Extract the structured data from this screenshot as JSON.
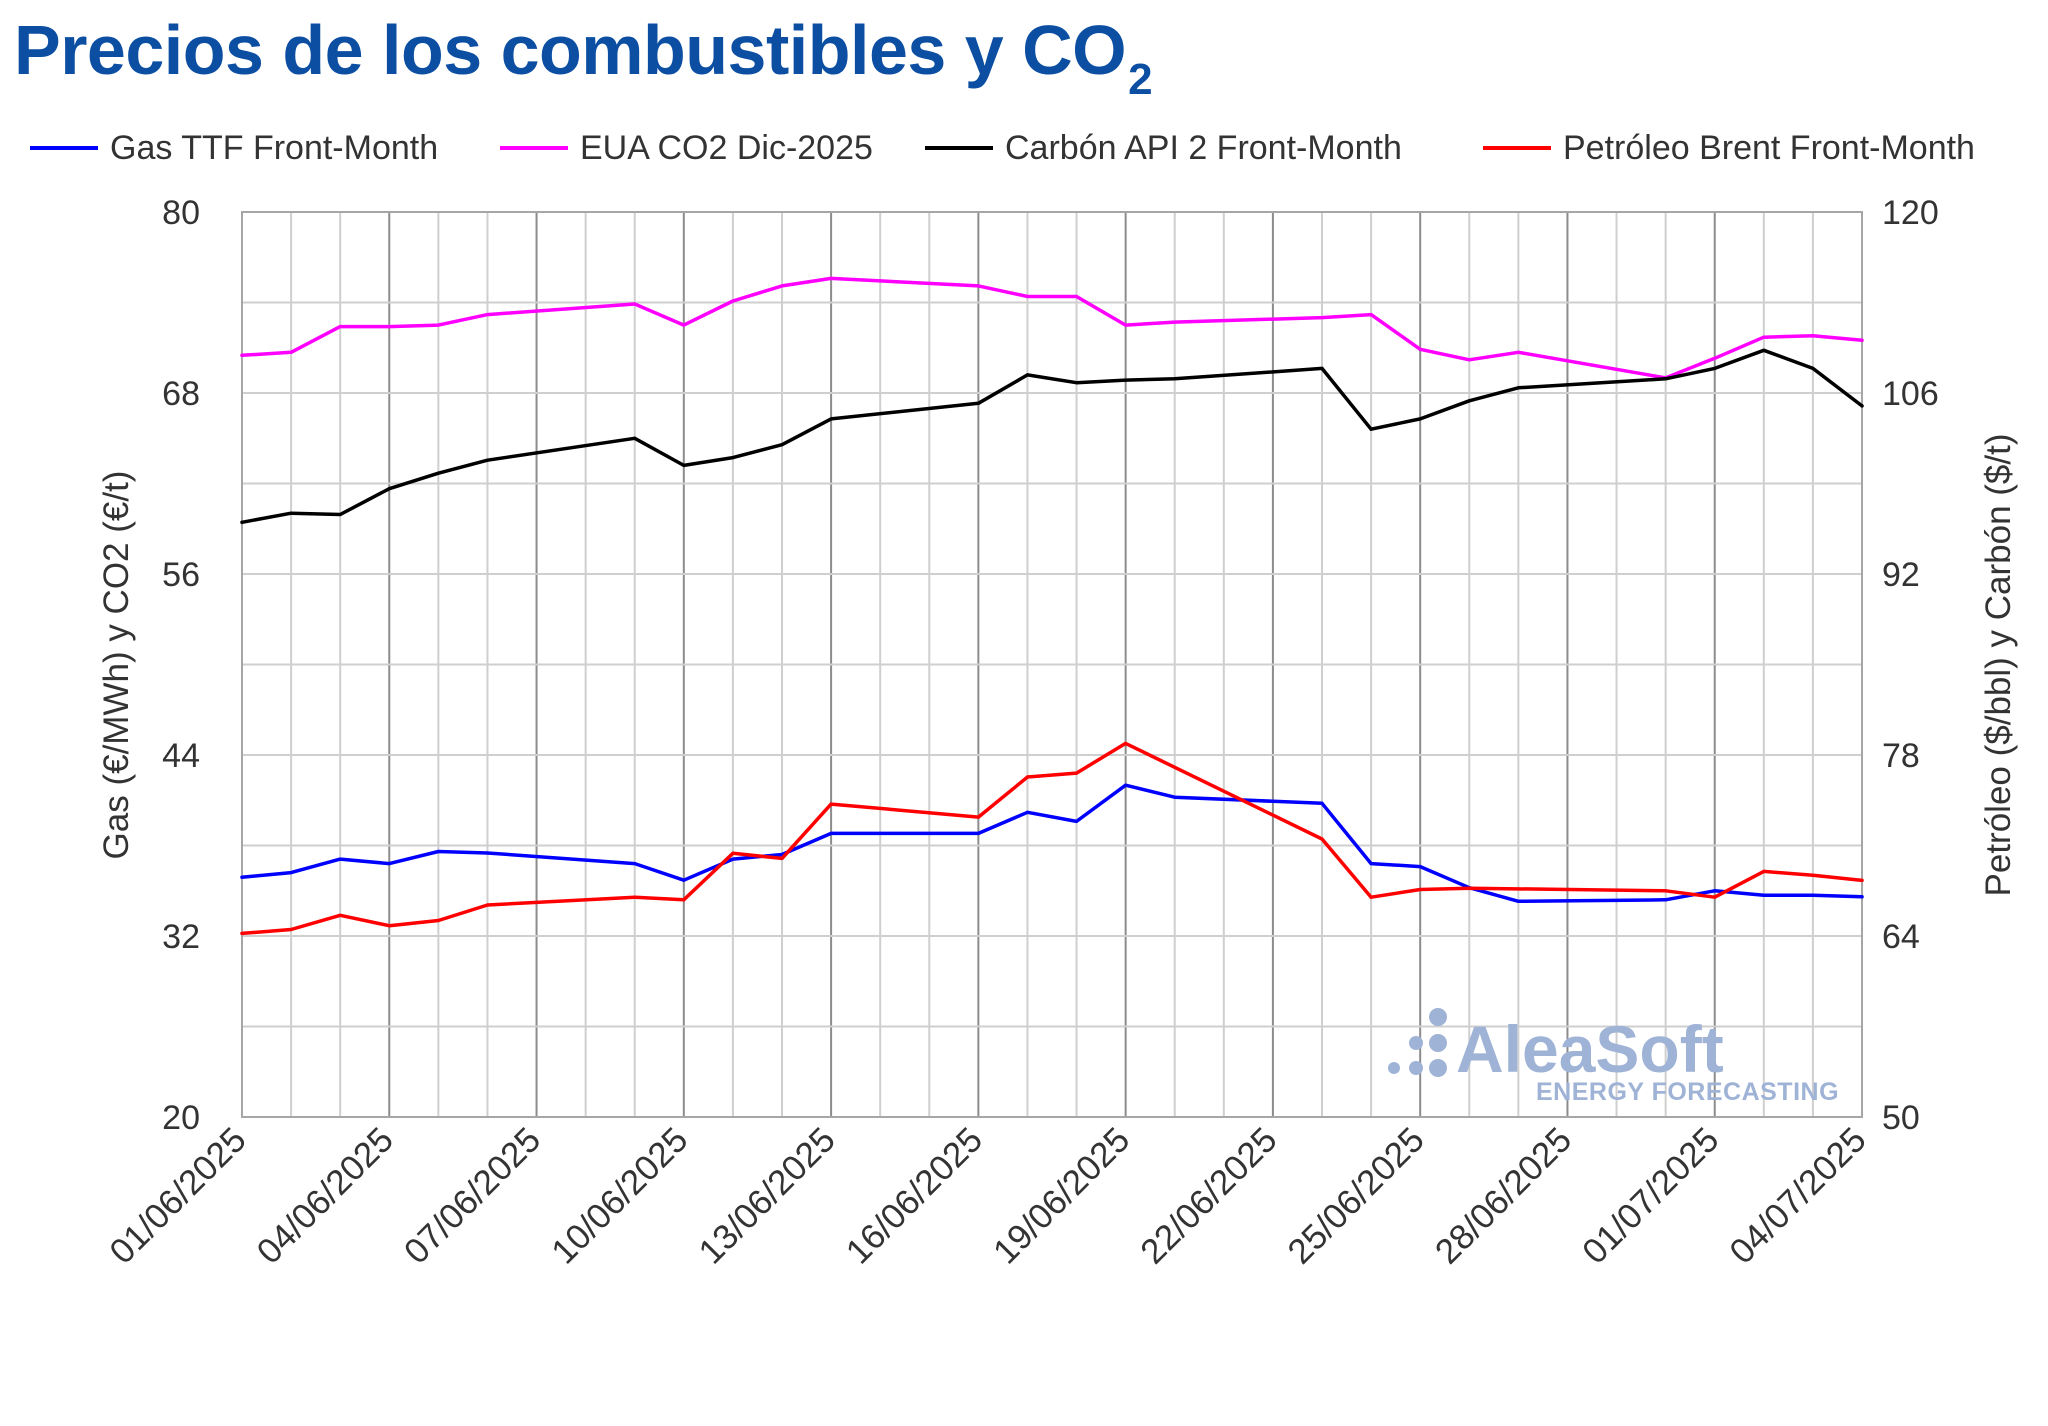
{
  "title": {
    "main": "Precios de los combustibles y CO",
    "subscript": "2"
  },
  "legend": [
    {
      "label": "Gas TTF Front-Month",
      "color": "#0000ff"
    },
    {
      "label": "EUA CO2 Dic-2025",
      "color": "#ff00ff"
    },
    {
      "label": "Carbón API 2 Front-Month",
      "color": "#000000"
    },
    {
      "label": "Petróleo Brent Front-Month",
      "color": "#ff0000"
    }
  ],
  "watermark": {
    "brand": "AleaSoft",
    "tagline": "ENERGY FORECASTING"
  },
  "chart_data": {
    "type": "line",
    "legend_position": "top",
    "grid": true,
    "ylabel_left": "Gas (€/MWh) y CO2 (€/t)",
    "ylabel_right": "Petróleo ($/bbl) y Carbón ($/t)",
    "ylim_left": [
      20,
      80
    ],
    "ylim_right": [
      50,
      120
    ],
    "yticks_left": [
      "20",
      "32",
      "44",
      "56",
      "68",
      "80"
    ],
    "yticks_right": [
      "50",
      "64",
      "78",
      "92",
      "106",
      "120"
    ],
    "x_tick_labels": [
      "01/06/2025",
      "04/06/2025",
      "07/06/2025",
      "10/06/2025",
      "13/06/2025",
      "16/06/2025",
      "19/06/2025",
      "22/06/2025",
      "25/06/2025",
      "28/06/2025",
      "01/07/2025",
      "04/07/2025"
    ],
    "series": [
      {
        "name": "Gas TTF Front-Month",
        "axis": "left",
        "color": "#0000ff",
        "points": [
          [
            "01/06/2025",
            35.9
          ],
          [
            "02/06/2025",
            36.2
          ],
          [
            "03/06/2025",
            37.1
          ],
          [
            "04/06/2025",
            36.8
          ],
          [
            "05/06/2025",
            37.6
          ],
          [
            "06/06/2025",
            37.5
          ],
          [
            "09/06/2025",
            36.8
          ],
          [
            "10/06/2025",
            35.7
          ],
          [
            "11/06/2025",
            37.1
          ],
          [
            "12/06/2025",
            37.4
          ],
          [
            "13/06/2025",
            38.8
          ],
          [
            "16/06/2025",
            38.8
          ],
          [
            "17/06/2025",
            40.2
          ],
          [
            "18/06/2025",
            39.6
          ],
          [
            "19/06/2025",
            42.0
          ],
          [
            "20/06/2025",
            41.2
          ],
          [
            "23/06/2025",
            40.8
          ],
          [
            "24/06/2025",
            36.8
          ],
          [
            "25/06/2025",
            36.6
          ],
          [
            "26/06/2025",
            35.2
          ],
          [
            "27/06/2025",
            34.3
          ],
          [
            "30/06/2025",
            34.4
          ],
          [
            "01/07/2025",
            35.0
          ],
          [
            "02/07/2025",
            34.7
          ],
          [
            "03/07/2025",
            34.7
          ],
          [
            "04/07/2025",
            34.6
          ]
        ]
      },
      {
        "name": "EUA CO2 Dic-2025",
        "axis": "left",
        "color": "#ff00ff",
        "points": [
          [
            "01/06/2025",
            70.5
          ],
          [
            "02/06/2025",
            70.7
          ],
          [
            "03/06/2025",
            72.4
          ],
          [
            "04/06/2025",
            72.4
          ],
          [
            "05/06/2025",
            72.5
          ],
          [
            "06/06/2025",
            73.2
          ],
          [
            "09/06/2025",
            73.9
          ],
          [
            "10/06/2025",
            72.5
          ],
          [
            "11/06/2025",
            74.1
          ],
          [
            "12/06/2025",
            75.1
          ],
          [
            "13/06/2025",
            75.6
          ],
          [
            "16/06/2025",
            75.1
          ],
          [
            "17/06/2025",
            74.4
          ],
          [
            "18/06/2025",
            74.4
          ],
          [
            "19/06/2025",
            72.5
          ],
          [
            "20/06/2025",
            72.7
          ],
          [
            "23/06/2025",
            73.0
          ],
          [
            "24/06/2025",
            73.2
          ],
          [
            "25/06/2025",
            70.9
          ],
          [
            "26/06/2025",
            70.2
          ],
          [
            "27/06/2025",
            70.7
          ],
          [
            "30/06/2025",
            69.0
          ],
          [
            "01/07/2025",
            70.3
          ],
          [
            "02/07/2025",
            71.7
          ],
          [
            "03/07/2025",
            71.8
          ],
          [
            "04/07/2025",
            71.5
          ]
        ]
      },
      {
        "name": "Carbón API 2 Front-Month",
        "axis": "right",
        "color": "#000000",
        "points": [
          [
            "01/06/2025",
            96.0
          ],
          [
            "02/06/2025",
            96.7
          ],
          [
            "03/06/2025",
            96.6
          ],
          [
            "04/06/2025",
            98.6
          ],
          [
            "05/06/2025",
            99.8
          ],
          [
            "06/06/2025",
            100.8
          ],
          [
            "09/06/2025",
            102.5
          ],
          [
            "10/06/2025",
            100.4
          ],
          [
            "11/06/2025",
            101.0
          ],
          [
            "12/06/2025",
            102.0
          ],
          [
            "13/06/2025",
            104.0
          ],
          [
            "16/06/2025",
            105.2
          ],
          [
            "17/06/2025",
            107.4
          ],
          [
            "18/06/2025",
            106.8
          ],
          [
            "19/06/2025",
            107.0
          ],
          [
            "20/06/2025",
            107.1
          ],
          [
            "23/06/2025",
            107.9
          ],
          [
            "24/06/2025",
            103.2
          ],
          [
            "25/06/2025",
            104.0
          ],
          [
            "26/06/2025",
            105.4
          ],
          [
            "27/06/2025",
            106.4
          ],
          [
            "30/06/2025",
            107.1
          ],
          [
            "01/07/2025",
            107.9
          ],
          [
            "02/07/2025",
            109.3
          ],
          [
            "03/07/2025",
            107.9
          ],
          [
            "04/07/2025",
            105.0
          ]
        ]
      },
      {
        "name": "Petróleo Brent Front-Month",
        "axis": "right",
        "color": "#ff0000",
        "points": [
          [
            "01/06/2025",
            64.2
          ],
          [
            "02/06/2025",
            64.5
          ],
          [
            "03/06/2025",
            65.6
          ],
          [
            "04/06/2025",
            64.8
          ],
          [
            "05/06/2025",
            65.2
          ],
          [
            "06/06/2025",
            66.4
          ],
          [
            "09/06/2025",
            67.0
          ],
          [
            "10/06/2025",
            66.8
          ],
          [
            "11/06/2025",
            70.4
          ],
          [
            "12/06/2025",
            70.0
          ],
          [
            "13/06/2025",
            74.2
          ],
          [
            "16/06/2025",
            73.2
          ],
          [
            "17/06/2025",
            76.3
          ],
          [
            "18/06/2025",
            76.6
          ],
          [
            "19/06/2025",
            78.9
          ],
          [
            "23/06/2025",
            71.5
          ],
          [
            "24/06/2025",
            67.0
          ],
          [
            "25/06/2025",
            67.6
          ],
          [
            "26/06/2025",
            67.7
          ],
          [
            "30/06/2025",
            67.5
          ],
          [
            "01/07/2025",
            67.0
          ],
          [
            "02/07/2025",
            69.0
          ],
          [
            "03/07/2025",
            68.7
          ],
          [
            "04/07/2025",
            68.3
          ]
        ]
      }
    ]
  }
}
